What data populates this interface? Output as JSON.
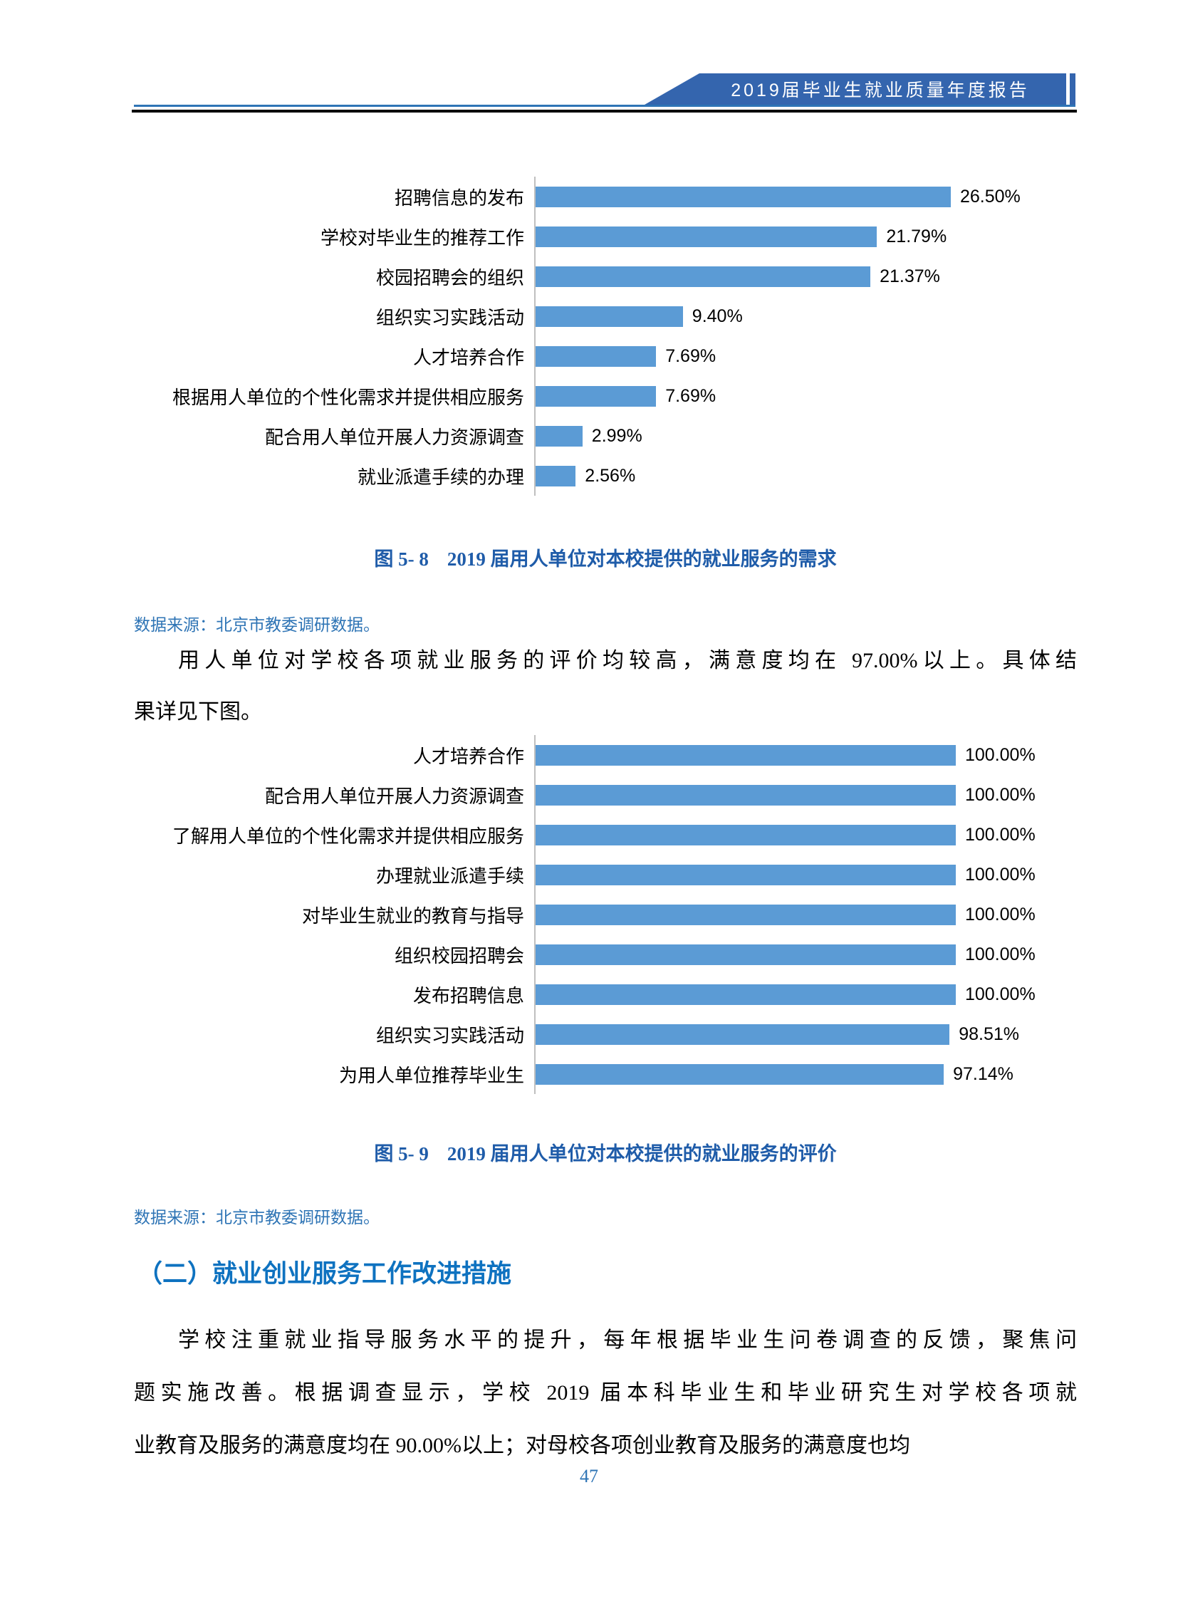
{
  "header": {
    "banner_title": "2019届毕业生就业质量年度报告"
  },
  "colors": {
    "bar_blue": "#5B9BD5",
    "caption_blue": "#1F5CA9",
    "heading_blue": "#0E72C0",
    "source_blue": "#2E74B5",
    "banner_blue": "#3465AE",
    "axis_gray": "#BFBFBF"
  },
  "figure_5_8": {
    "caption_prefix": "图 5- 8",
    "caption_title": "2019 届用人单位对本校提供的就业服务的需求",
    "source": "数据来源：北京市教委调研数据。"
  },
  "figure_5_9": {
    "caption_prefix": "图 5- 9",
    "caption_title": "2019 届用人单位对本校提供的就业服务的评价",
    "source": "数据来源：北京市教委调研数据。"
  },
  "paragraph_1": {
    "lines": [
      "用人单位对学校各项就业服务的评价均较高，满意度均在 97.00%以上。具体结",
      "果详见下图。"
    ],
    "full_text": "用人单位对学校各项就业服务的评价均较高，满意度均在 97.00%以上。具体结果详见下图。"
  },
  "section_heading": "（二）就业创业服务工作改进措施",
  "paragraph_2": {
    "lines": [
      "学校注重就业指导服务水平的提升，每年根据毕业生问卷调查的反馈，聚焦问",
      "题实施改善。根据调查显示，学校 2019 届本科毕业生和毕业研究生对学校各项就",
      "业教育及服务的满意度均在 90.00%以上；对母校各项创业教育及服务的满意度也均"
    ],
    "full_text": "学校注重就业指导服务水平的提升，每年根据毕业生问卷调查的反馈，聚焦问题实施改善。根据调查显示，学校 2019 届本科毕业生和毕业研究生对学校各项就业教育及服务的满意度均在 90.00%以上；对母校各项创业教育及服务的满意度也均"
  },
  "page_number": "47",
  "chart_data": [
    {
      "type": "bar",
      "orientation": "horizontal",
      "title": "图 5- 8  2019 届用人单位对本校提供的就业服务的需求",
      "categories": [
        "招聘信息的发布",
        "学校对毕业生的推荐工作",
        "校园招聘会的组织",
        "组织实习实践活动",
        "人才培养合作",
        "根据用人单位的个性化需求并提供相应服务",
        "配合用人单位开展人力资源调查",
        "就业派遣手续的办理"
      ],
      "values": [
        26.5,
        21.79,
        21.37,
        9.4,
        7.69,
        7.69,
        2.99,
        2.56
      ],
      "value_labels": [
        "26.50%",
        "21.79%",
        "21.37%",
        "9.40%",
        "7.69%",
        "7.69%",
        "2.99%",
        "2.56%"
      ],
      "xlabel": "",
      "ylabel": "",
      "xlim": [
        0,
        30
      ],
      "grid": false,
      "legend": false,
      "bar_color": "#5B9BD5"
    },
    {
      "type": "bar",
      "orientation": "horizontal",
      "title": "图 5- 9  2019 届用人单位对本校提供的就业服务的评价",
      "categories": [
        "人才培养合作",
        "配合用人单位开展人力资源调查",
        "了解用人单位的个性化需求并提供相应服务",
        "办理就业派遣手续",
        "对毕业生就业的教育与指导",
        "组织校园招聘会",
        "发布招聘信息",
        "组织实习实践活动",
        "为用人单位推荐毕业生"
      ],
      "values": [
        100.0,
        100.0,
        100.0,
        100.0,
        100.0,
        100.0,
        100.0,
        98.51,
        97.14
      ],
      "value_labels": [
        "100.00%",
        "100.00%",
        "100.00%",
        "100.00%",
        "100.00%",
        "100.00%",
        "100.00%",
        "98.51%",
        "97.14%"
      ],
      "xlabel": "",
      "ylabel": "",
      "xlim": [
        0,
        100
      ],
      "grid": false,
      "legend": false,
      "bar_color": "#5B9BD5"
    }
  ]
}
